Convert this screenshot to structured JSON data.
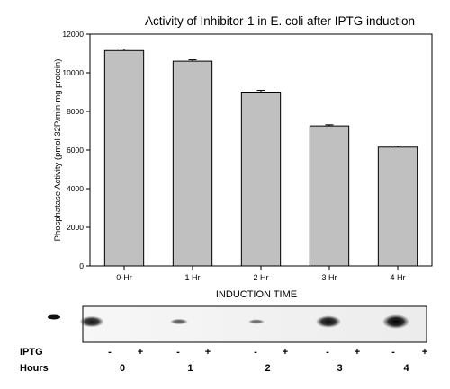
{
  "chart_data": {
    "type": "bar",
    "title": "Activity of Inhibitor-1 in E. coli after IPTG induction",
    "xlabel": "INDUCTION TIME",
    "ylabel": "Phosphatase Activity (pmol 32P/min-mg protein)",
    "categories": [
      "0-Hr",
      "1 Hr",
      "2 Hr",
      "3 Hr",
      "4 Hr"
    ],
    "values": [
      11150,
      10600,
      9000,
      7250,
      6150
    ],
    "errors": [
      80,
      70,
      90,
      60,
      60
    ],
    "ylim": [
      0,
      12000
    ],
    "yticks": [
      0,
      2000,
      4000,
      6000,
      8000,
      10000,
      12000
    ],
    "bar_color": "#c0c0c0",
    "grid": false
  },
  "blot": {
    "rows": {
      "iptg": {
        "label": "IPTG",
        "values": [
          "-",
          "+",
          "-",
          "+",
          "-",
          "+",
          "-",
          "+",
          "-",
          "+"
        ]
      },
      "hours": {
        "label": "Hours",
        "values": [
          "0",
          "1",
          "2",
          "3",
          "4"
        ]
      }
    },
    "band_intensity": [
      0.85,
      0.0,
      0.0,
      0.45,
      0.0,
      0.35,
      0.0,
      0.9,
      0.0,
      1.0
    ]
  }
}
